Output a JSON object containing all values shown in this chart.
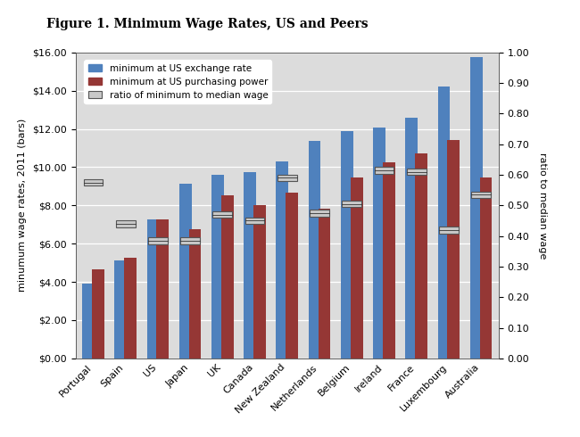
{
  "title": "Figure 1. Minimum Wage Rates, US and Peers",
  "categories": [
    "Portugal",
    "Spain",
    "US",
    "Japan",
    "UK",
    "Canada",
    "New Zealand",
    "Netherlands",
    "Belgium",
    "Ireland",
    "France",
    "Luxembourg",
    "Australia"
  ],
  "exchange_rate": [
    3.9,
    5.1,
    7.25,
    9.15,
    9.6,
    9.75,
    10.3,
    11.35,
    11.9,
    12.05,
    12.6,
    14.2,
    15.75
  ],
  "purchasing_power": [
    4.65,
    5.25,
    7.25,
    6.75,
    8.55,
    8.0,
    8.65,
    7.85,
    9.45,
    10.25,
    10.7,
    11.4,
    9.45
  ],
  "ratio": [
    0.575,
    0.44,
    0.385,
    0.385,
    0.47,
    0.45,
    0.59,
    0.475,
    0.505,
    0.615,
    0.61,
    0.42,
    0.535
  ],
  "ylabel_left": "minumum wage rates, 2011 (bars)",
  "ylabel_right": "ratio to median wage",
  "bar_color_blue": "#4F81BD",
  "bar_color_red": "#953735",
  "background_color": "#DCDCDC",
  "legend_labels": [
    "minimum at US exchange rate",
    "minimum at US purchasing power",
    "ratio of minimum to median wage"
  ],
  "title_fontsize": 10,
  "axis_fontsize": 8,
  "tick_fontsize": 8
}
